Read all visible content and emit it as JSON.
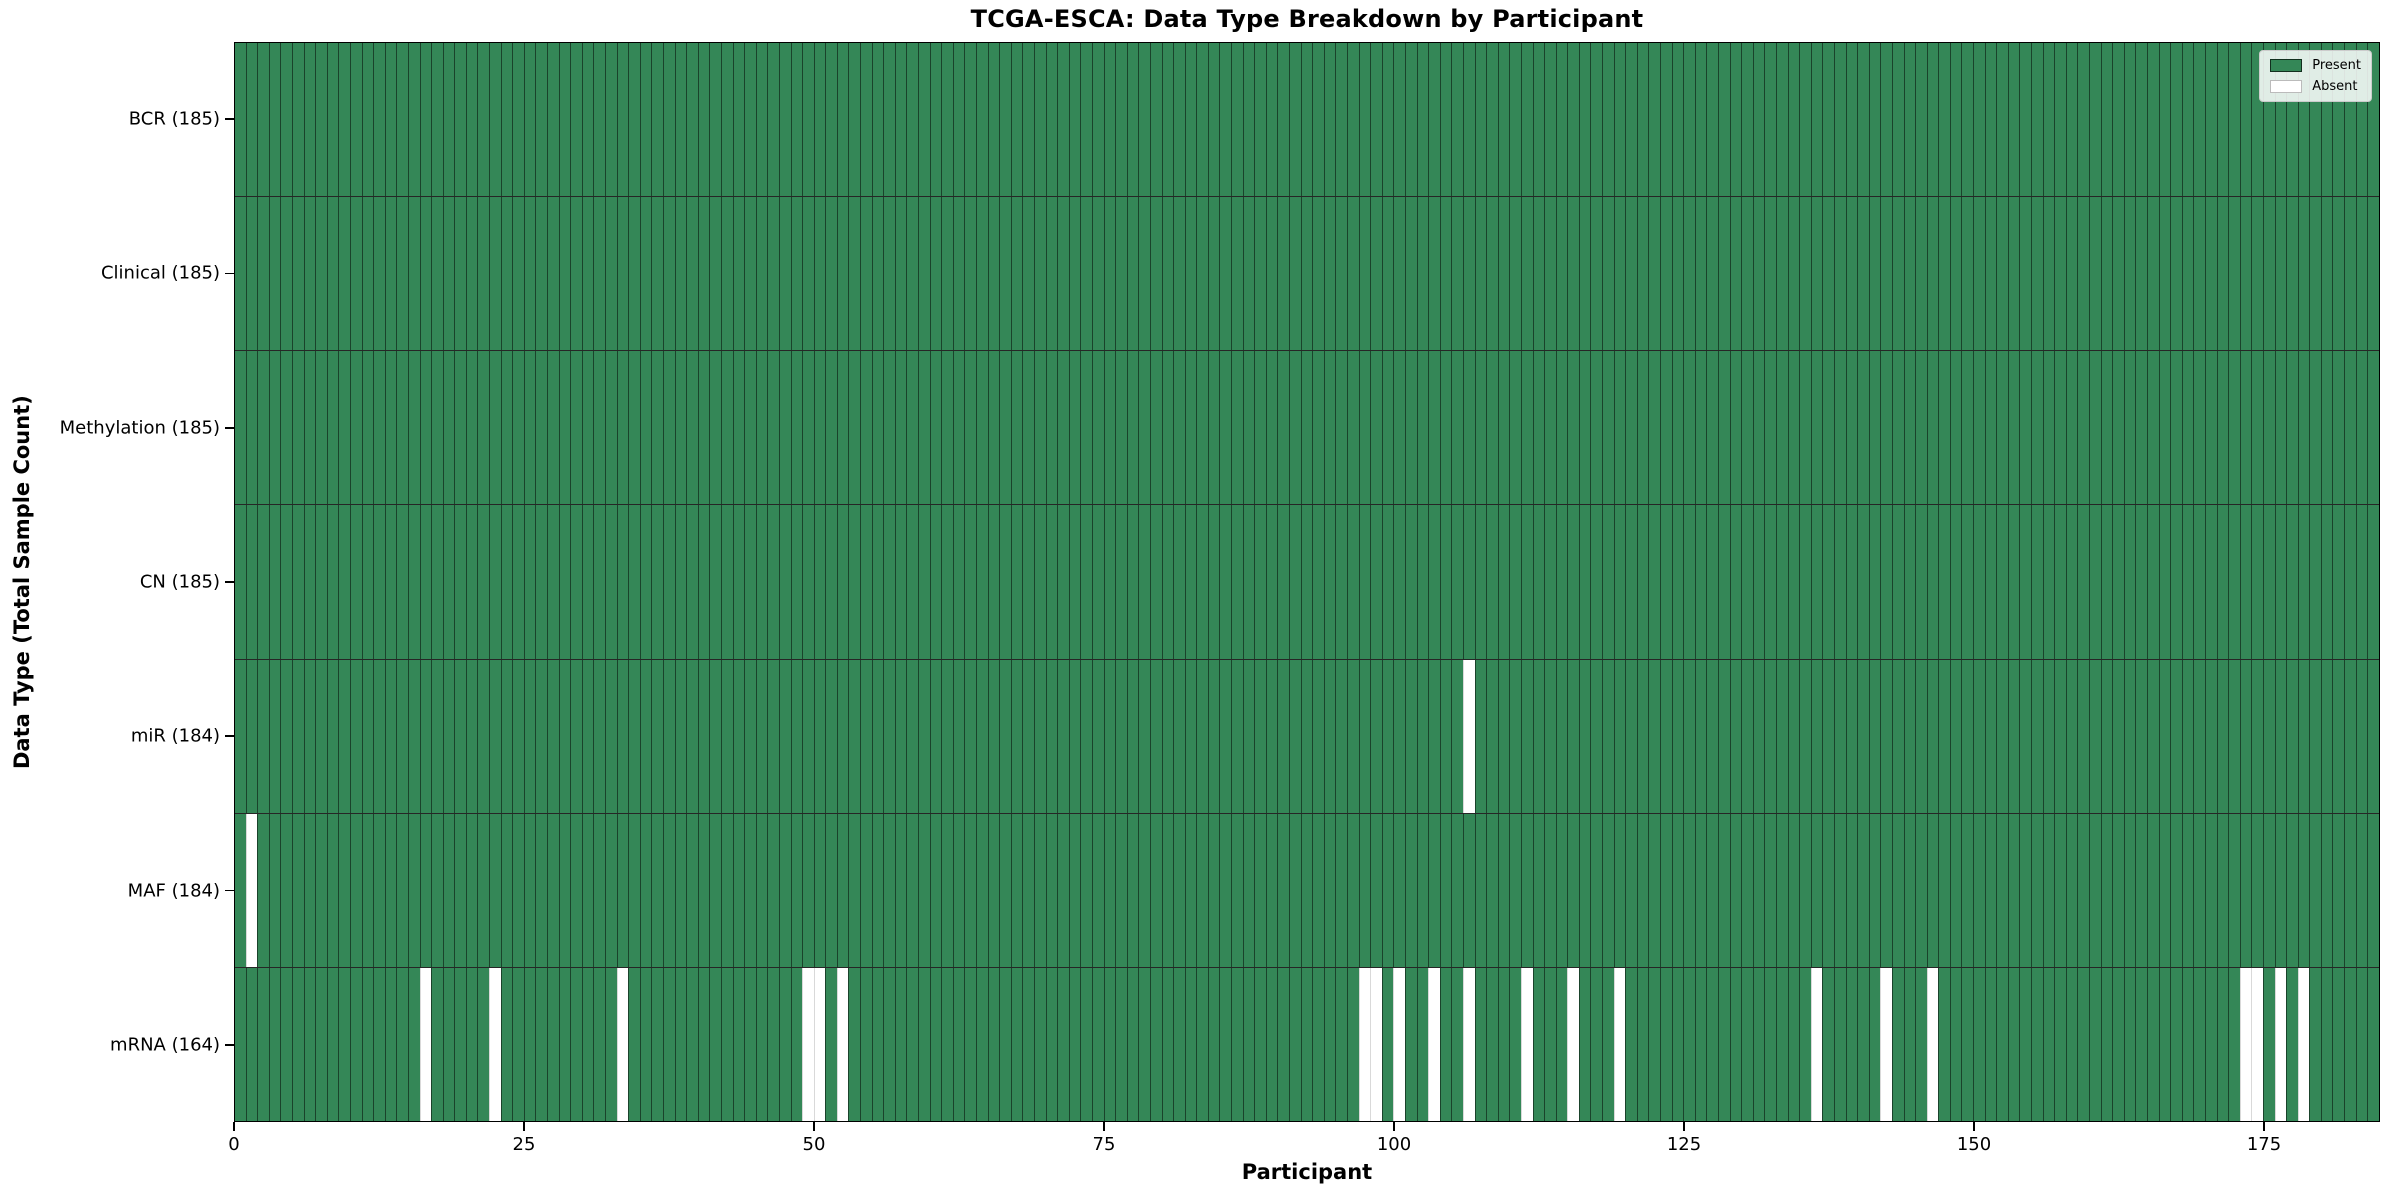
{
  "title": "TCGA-ESCA: Data Type Breakdown by Participant",
  "xlabel": "Participant",
  "ylabel": "Data Type (Total Sample Count)",
  "legend": {
    "position": "upper right",
    "entries": [
      {
        "label": "Present",
        "color": "#348757"
      },
      {
        "label": "Absent",
        "color": "#ffffff"
      }
    ]
  },
  "chart_data": {
    "type": "heatmap",
    "title": "TCGA-ESCA: Data Type Breakdown by Participant",
    "xlabel": "Participant",
    "ylabel": "Data Type (Total Sample Count)",
    "n_participants": 185,
    "xlim": [
      0,
      185
    ],
    "x_ticks": [
      0,
      25,
      50,
      75,
      100,
      125,
      150,
      175
    ],
    "grid": false,
    "cell_states": {
      "present_value": 1,
      "absent_value": 0
    },
    "colors": {
      "present": "#348757",
      "absent": "#ffffff",
      "cell_edge": "rgba(0,0,0,0.5)",
      "row_divider": "#000000"
    },
    "rows": [
      {
        "label": "BCR (185)",
        "data_type": "BCR",
        "present_count": 185,
        "absent_participants": []
      },
      {
        "label": "Clinical (185)",
        "data_type": "Clinical",
        "present_count": 185,
        "absent_participants": []
      },
      {
        "label": "Methylation (185)",
        "data_type": "Methylation",
        "present_count": 185,
        "absent_participants": []
      },
      {
        "label": "CN (185)",
        "data_type": "CN",
        "present_count": 185,
        "absent_participants": []
      },
      {
        "label": "miR (184)",
        "data_type": "miR",
        "present_count": 184,
        "absent_participants": [
          106
        ]
      },
      {
        "label": "MAF (184)",
        "data_type": "MAF",
        "present_count": 184,
        "absent_participants": [
          1
        ]
      },
      {
        "label": "mRNA (164)",
        "data_type": "mRNA",
        "present_count": 164,
        "absent_participants": [
          16,
          22,
          33,
          49,
          50,
          52,
          97,
          98,
          100,
          103,
          106,
          111,
          115,
          119,
          136,
          142,
          146,
          173,
          174,
          176,
          178
        ]
      }
    ]
  }
}
